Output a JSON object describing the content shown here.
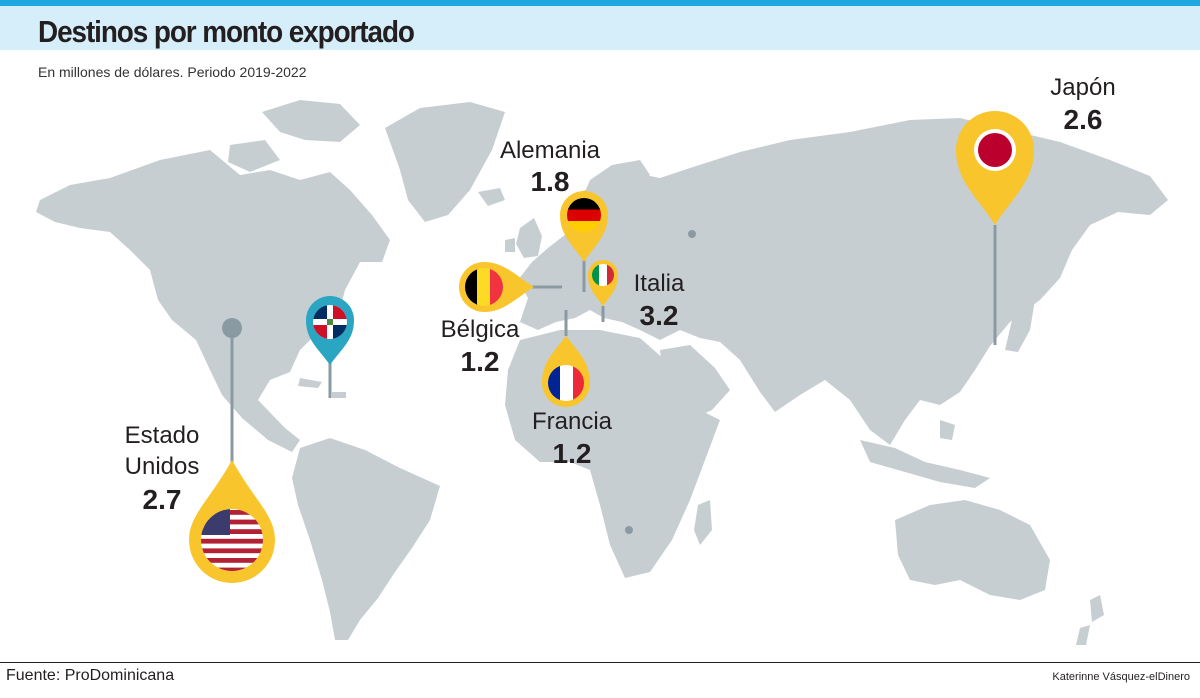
{
  "header": {
    "title": "Destinos por monto exportado",
    "subtitle": "En millones de dólares. Periodo 2019-2022"
  },
  "destinations": [
    {
      "id": "estados-unidos",
      "name_line1": "Estado",
      "name_line2": "Unidos",
      "value": "2.7",
      "flag": "usa-flag-icon"
    },
    {
      "id": "japon",
      "name_line1": "Japón",
      "value": "2.6",
      "flag": "japan-flag-icon"
    },
    {
      "id": "alemania",
      "name_line1": "Alemania",
      "value": "1.8",
      "flag": "germany-flag-icon"
    },
    {
      "id": "italia",
      "name_line1": "Italia",
      "value": "3.2",
      "flag": "italy-flag-icon"
    },
    {
      "id": "belgica",
      "name_line1": "Bélgica",
      "value": "1.2",
      "flag": "belgium-flag-icon"
    },
    {
      "id": "francia",
      "name_line1": "Francia",
      "value": "1.2",
      "flag": "france-flag-icon"
    }
  ],
  "origin": {
    "flag": "dominican-republic-flag-icon"
  },
  "colors": {
    "marker": "#f9c52c",
    "origin_marker": "#2aa5c2",
    "land": "#c7ced2",
    "leader": "#8a9aa2",
    "header_bg": "#d6eef9",
    "header_accent": "#1fa8e0"
  },
  "footer": {
    "source": "Fuente: ProDominicana",
    "credit": "Katerinne Vásquez-elDinero"
  }
}
